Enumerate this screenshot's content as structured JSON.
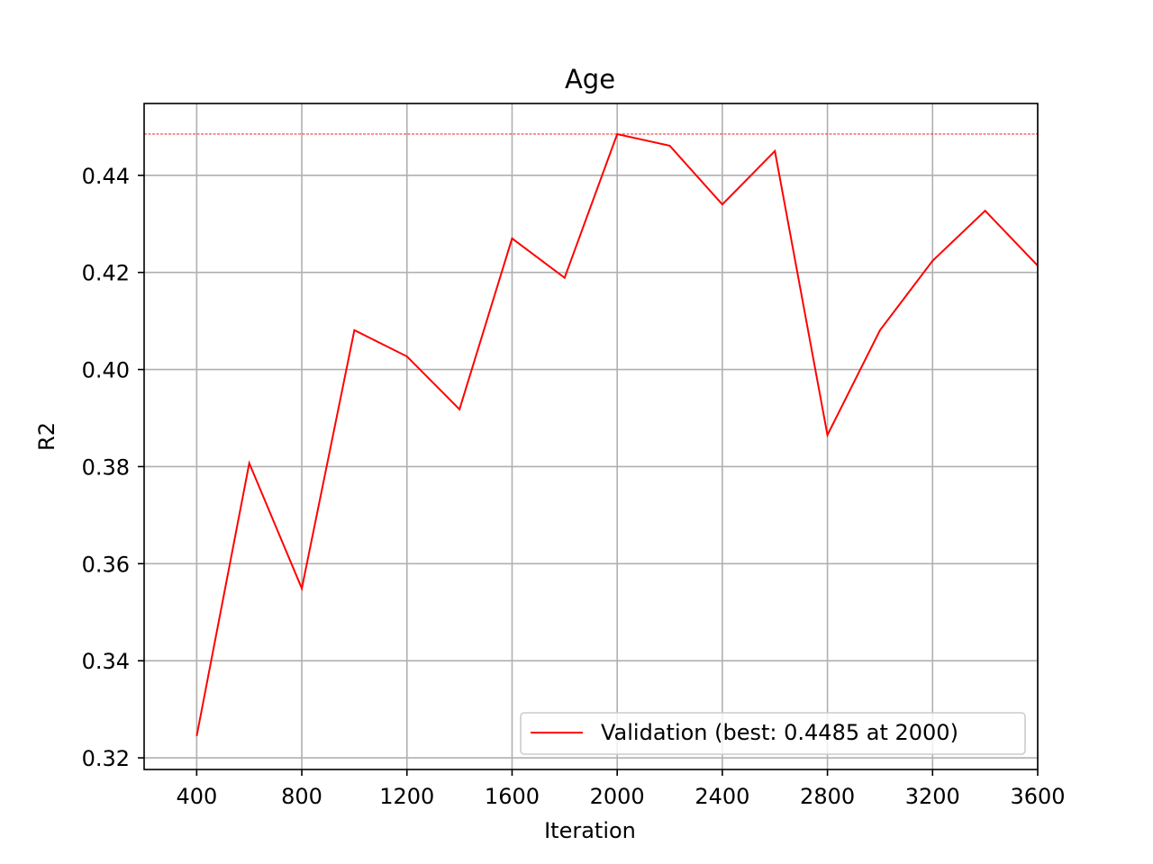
{
  "chart_data": {
    "type": "line",
    "title": "Age",
    "xlabel": "Iteration",
    "ylabel": "R2",
    "xlim": [
      200,
      3600
    ],
    "ylim": [
      0.3176,
      0.4548
    ],
    "xticks": [
      400,
      800,
      1200,
      1600,
      2000,
      2400,
      2800,
      3200,
      3600
    ],
    "xtick_labels": [
      "400",
      "800",
      "1200",
      "1600",
      "2000",
      "2400",
      "2800",
      "3200",
      "3600"
    ],
    "yticks": [
      0.32,
      0.34,
      0.36,
      0.38,
      0.4,
      0.42,
      0.44
    ],
    "ytick_labels": [
      "0.32",
      "0.34",
      "0.36",
      "0.38",
      "0.40",
      "0.42",
      "0.44"
    ],
    "grid": true,
    "legend_position": "lower-right",
    "series": [
      {
        "name": "Validation (best: 0.4485 at 2000)",
        "color": "#ff0000",
        "x": [
          400,
          600,
          800,
          1000,
          1200,
          1400,
          1600,
          1800,
          2000,
          2200,
          2400,
          2600,
          2800,
          3000,
          3200,
          3400,
          3600
        ],
        "y": [
          0.3245,
          0.3807,
          0.3549,
          0.4081,
          0.4027,
          0.3918,
          0.427,
          0.4189,
          0.4485,
          0.4461,
          0.434,
          0.445,
          0.3865,
          0.4081,
          0.4224,
          0.4327,
          0.4214
        ]
      }
    ],
    "reference_lines": [
      {
        "orientation": "horizontal",
        "y": 0.4485,
        "color": "#ff0000",
        "style": "dashed"
      }
    ]
  }
}
